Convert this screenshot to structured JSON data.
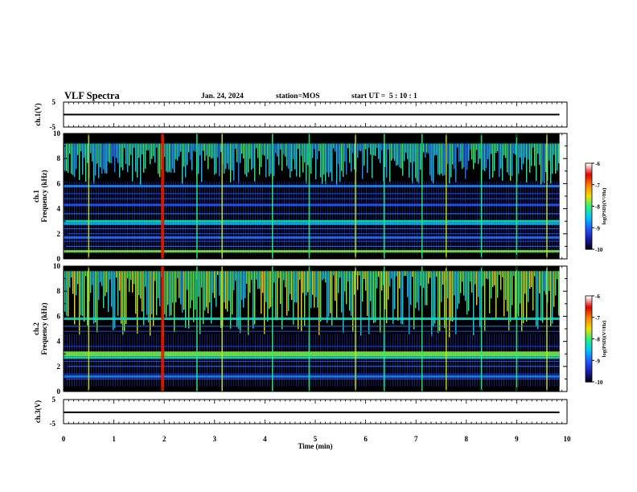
{
  "header": {
    "title": "VLF Spectra",
    "date": "Jan. 24, 2024",
    "station": "station=MOS",
    "start_ut": "start UT =  5 : 10 : 1"
  },
  "chart_data": [
    {
      "type": "line",
      "panel": "ch1-voltage",
      "ylabel": "ch.1(V)",
      "ylim": [
        -5,
        5
      ],
      "yticks": [
        "5",
        "-5"
      ],
      "series": [
        {
          "x": [
            0,
            9.85
          ],
          "y": [
            0,
            0
          ]
        }
      ],
      "xlim": [
        0,
        10
      ]
    },
    {
      "type": "heatmap",
      "panel": "ch1-spectrogram",
      "ylabel": [
        "ch.1",
        "Frequency (kHz)"
      ],
      "ylim": [
        0,
        10
      ],
      "yticks": [
        "0",
        "2",
        "4",
        "6",
        "8",
        "10"
      ],
      "xlim": [
        0,
        9.85
      ],
      "colorbar": {
        "label": "log(PSD)(V²/Hz)",
        "range": [
          -10,
          -6
        ],
        "ticks": [
          "-6",
          "-7",
          "-8",
          "-9",
          "-10"
        ]
      },
      "bands_khz": [
        {
          "f": 3.0,
          "level": -8.2
        },
        {
          "f": 2.8,
          "level": -8.6
        },
        {
          "f": 4.3,
          "level": -9.0
        },
        {
          "f": 5.8,
          "level": -8.8
        },
        {
          "f": 1.7,
          "level": -8.9
        },
        {
          "f": 0.6,
          "level": -7.8
        }
      ],
      "spikes_min": [
        0.5,
        1.97,
        2.65,
        3.15,
        4.15,
        4.88,
        5.8,
        6.37,
        7.12,
        7.6,
        8.3,
        9.0,
        9.6
      ]
    },
    {
      "type": "heatmap",
      "panel": "ch2-spectrogram",
      "ylabel": [
        "ch.2",
        "Frequency (kHz)"
      ],
      "ylim": [
        0,
        10
      ],
      "yticks": [
        "0",
        "2",
        "4",
        "6",
        "8",
        "10"
      ],
      "xlim": [
        0,
        9.85
      ],
      "colorbar": {
        "label": "log(PSD)(V²/Hz)",
        "range": [
          -10,
          -6
        ],
        "ticks": [
          "-6",
          "-7",
          "-8",
          "-9",
          "-10"
        ]
      },
      "bands_khz": [
        {
          "f": 3.0,
          "level": -7.8
        },
        {
          "f": 2.7,
          "level": -8.2
        },
        {
          "f": 5.8,
          "level": -8.3
        },
        {
          "f": 1.2,
          "level": -8.8
        }
      ],
      "spikes_min": [
        0.5,
        1.97,
        2.65,
        3.15,
        4.15,
        4.88,
        5.8,
        6.37,
        7.12,
        7.6,
        8.3,
        9.0,
        9.6
      ]
    },
    {
      "type": "line",
      "panel": "ch3-voltage",
      "ylabel": "ch.3(V)",
      "ylim": [
        -5,
        5
      ],
      "yticks": [
        "5",
        "-5"
      ],
      "series": [
        {
          "x": [
            0,
            9.85
          ],
          "y": [
            -0.3,
            -0.3
          ]
        }
      ],
      "xlim": [
        0,
        10
      ],
      "xlabel": "Time (min)",
      "xticks": [
        "0",
        "1",
        "2",
        "3",
        "4",
        "5",
        "6",
        "7",
        "8",
        "9",
        "10"
      ]
    }
  ],
  "colors": {
    "background": "#000000",
    "axis": "#000000",
    "colormap": [
      "#000000",
      "#1a1aa8",
      "#1f5aff",
      "#00c8ff",
      "#28f07a",
      "#f0e000",
      "#ff8000",
      "#e00000",
      "#ffffff"
    ]
  }
}
